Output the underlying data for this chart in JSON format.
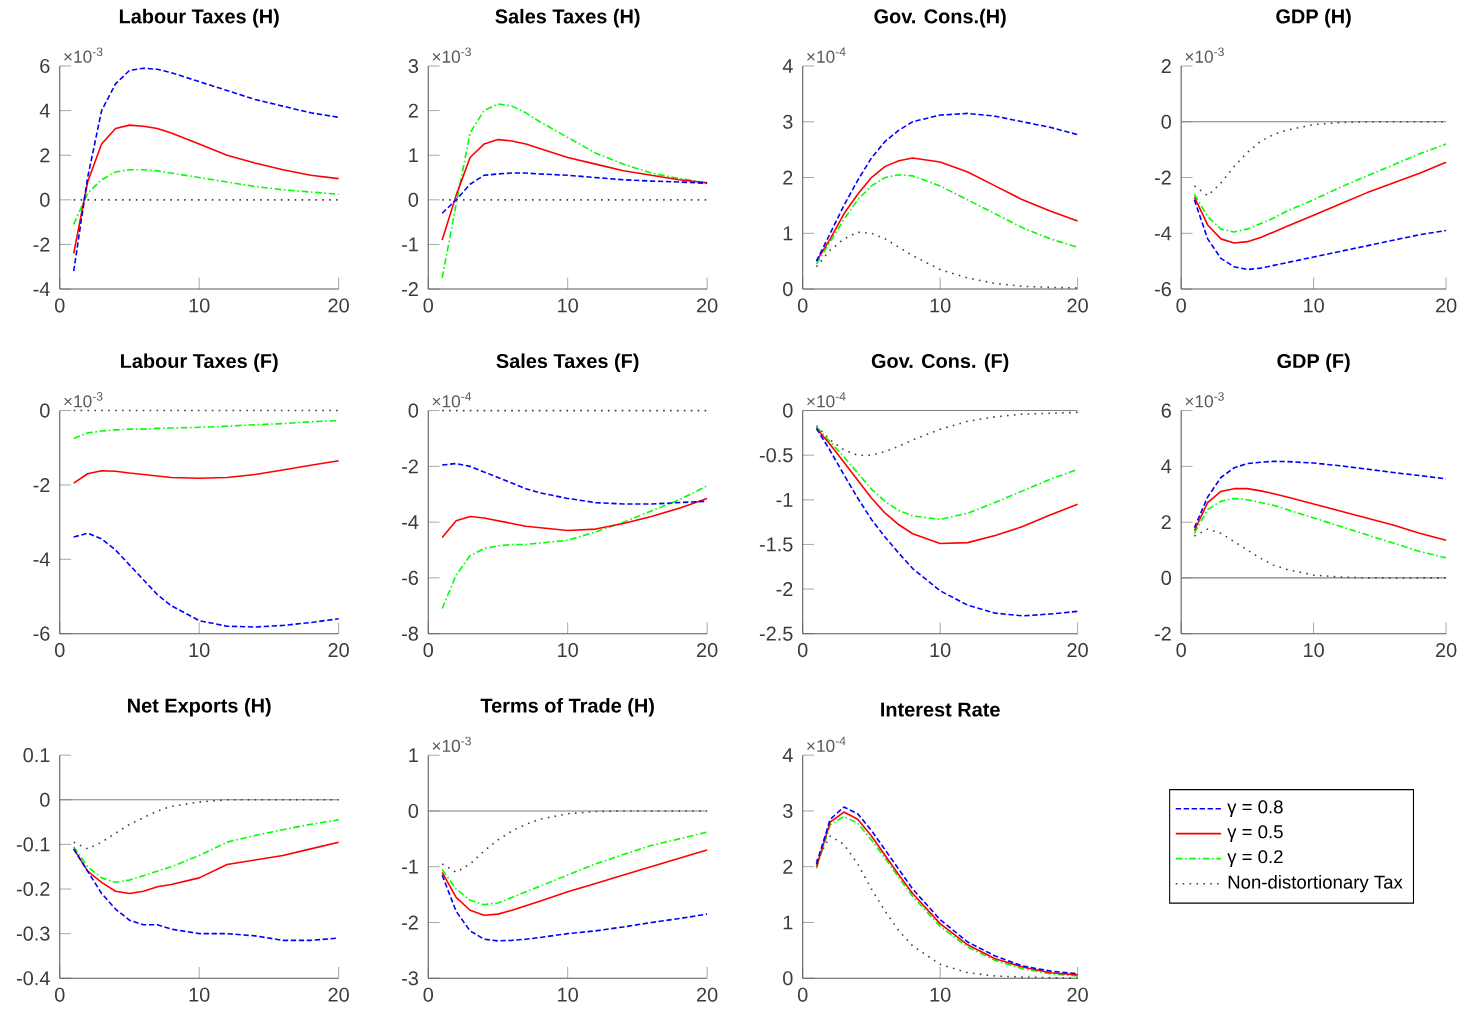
{
  "chart_data": [
    {
      "type": "line",
      "title": "Labour Taxes (H)",
      "annotations": [
        "×10$^{-3}$"
      ],
      "x": [
        1,
        2,
        3,
        4,
        5,
        6,
        7,
        8,
        10,
        12,
        14,
        16,
        18,
        20
      ],
      "xlim": [
        0,
        20
      ],
      "xticks": [
        0,
        10,
        20
      ],
      "ylim": [
        -4,
        6
      ],
      "yticks": [
        -4,
        -2,
        0,
        2,
        4,
        6
      ],
      "series": [
        {
          "color": "#0000ff",
          "line_style": "dashed",
          "values": [
            -3.2,
            1.0,
            4.0,
            5.2,
            5.8,
            5.9,
            5.85,
            5.7,
            5.3,
            4.9,
            4.5,
            4.2,
            3.9,
            3.7
          ]
        },
        {
          "color": "#ff0000",
          "line_style": "solid",
          "values": [
            -2.4,
            0.8,
            2.5,
            3.2,
            3.35,
            3.3,
            3.2,
            3.0,
            2.5,
            2.0,
            1.65,
            1.35,
            1.1,
            0.95
          ]
        },
        {
          "color": "#00ff00",
          "line_style": "dashdot",
          "values": [
            -1.1,
            0.3,
            0.9,
            1.25,
            1.35,
            1.35,
            1.3,
            1.2,
            1.0,
            0.8,
            0.6,
            0.45,
            0.35,
            0.25
          ]
        },
        {
          "color": "#404040",
          "line_style": "dotted",
          "values": [
            0,
            0,
            0,
            0,
            0,
            0,
            0,
            0,
            0,
            0,
            0,
            0,
            0,
            0
          ]
        }
      ]
    },
    {
      "type": "line",
      "title": "Sales Taxes (H)",
      "annotations": [
        "×10$^{-3}$"
      ],
      "x": [
        1,
        2,
        3,
        4,
        5,
        6,
        7,
        8,
        10,
        12,
        14,
        16,
        18,
        20
      ],
      "xlim": [
        0,
        20
      ],
      "xticks": [
        0,
        10,
        20
      ],
      "ylim": [
        -2,
        3
      ],
      "yticks": [
        -2,
        -1,
        0,
        1,
        2,
        3
      ],
      "series": [
        {
          "color": "#0000ff",
          "line_style": "dashed",
          "values": [
            -0.3,
            0.0,
            0.35,
            0.55,
            0.58,
            0.6,
            0.6,
            0.58,
            0.55,
            0.5,
            0.45,
            0.42,
            0.4,
            0.37
          ]
        },
        {
          "color": "#ff0000",
          "line_style": "solid",
          "values": [
            -0.9,
            0.1,
            0.95,
            1.25,
            1.35,
            1.32,
            1.25,
            1.15,
            0.95,
            0.8,
            0.65,
            0.55,
            0.45,
            0.38
          ]
        },
        {
          "color": "#00ff00",
          "line_style": "dashdot",
          "values": [
            -1.75,
            -0.1,
            1.5,
            2.0,
            2.15,
            2.1,
            1.95,
            1.75,
            1.4,
            1.05,
            0.8,
            0.6,
            0.48,
            0.38
          ]
        },
        {
          "color": "#404040",
          "line_style": "dotted",
          "values": [
            0,
            0,
            0,
            0,
            0,
            0,
            0,
            0,
            0,
            0,
            0,
            0,
            0,
            0
          ]
        }
      ]
    },
    {
      "type": "line",
      "title": "Gov. Cons.(H)",
      "annotations": [
        "×10$^{-4}$"
      ],
      "x": [
        1,
        2,
        3,
        4,
        5,
        6,
        7,
        8,
        10,
        12,
        14,
        16,
        18,
        20
      ],
      "xlim": [
        0,
        20
      ],
      "xticks": [
        0,
        10,
        20
      ],
      "ylim": [
        0,
        4
      ],
      "yticks": [
        0,
        1,
        2,
        3,
        4
      ],
      "series": [
        {
          "color": "#0000ff",
          "line_style": "dashed",
          "values": [
            0.5,
            1.0,
            1.5,
            1.95,
            2.35,
            2.65,
            2.85,
            3.0,
            3.12,
            3.15,
            3.1,
            3.0,
            2.9,
            2.77
          ]
        },
        {
          "color": "#ff0000",
          "line_style": "solid",
          "values": [
            0.5,
            0.9,
            1.35,
            1.7,
            2.0,
            2.2,
            2.3,
            2.35,
            2.28,
            2.1,
            1.85,
            1.6,
            1.4,
            1.22
          ]
        },
        {
          "color": "#00ff00",
          "line_style": "dashdot",
          "values": [
            0.45,
            0.85,
            1.25,
            1.6,
            1.85,
            2.0,
            2.05,
            2.03,
            1.85,
            1.6,
            1.35,
            1.1,
            0.9,
            0.75
          ]
        },
        {
          "color": "#404040",
          "line_style": "dotted",
          "values": [
            0.4,
            0.7,
            0.9,
            1.02,
            1.0,
            0.9,
            0.75,
            0.6,
            0.35,
            0.2,
            0.1,
            0.05,
            0.03,
            0.02
          ]
        }
      ]
    },
    {
      "type": "line",
      "title": "GDP (H)",
      "annotations": [
        "×10$^{-3}$"
      ],
      "x": [
        1,
        2,
        3,
        4,
        5,
        6,
        7,
        8,
        10,
        12,
        14,
        16,
        18,
        20
      ],
      "xlim": [
        0,
        20
      ],
      "xticks": [
        0,
        10,
        20
      ],
      "ylim": [
        -6,
        2
      ],
      "yticks": [
        -6,
        -4,
        -2,
        0,
        2
      ],
      "ref_lines": [
        {
          "axis": "y",
          "value": 0,
          "color": "#808080"
        }
      ],
      "series": [
        {
          "color": "#0000ff",
          "line_style": "dashed",
          "values": [
            -2.8,
            -4.2,
            -4.9,
            -5.2,
            -5.3,
            -5.25,
            -5.15,
            -5.05,
            -4.85,
            -4.65,
            -4.45,
            -4.25,
            -4.05,
            -3.9
          ]
        },
        {
          "color": "#ff0000",
          "line_style": "solid",
          "values": [
            -2.7,
            -3.7,
            -4.2,
            -4.35,
            -4.3,
            -4.15,
            -3.95,
            -3.75,
            -3.35,
            -2.95,
            -2.55,
            -2.2,
            -1.85,
            -1.45
          ]
        },
        {
          "color": "#00ff00",
          "line_style": "dashdot",
          "values": [
            -2.6,
            -3.4,
            -3.85,
            -3.95,
            -3.85,
            -3.65,
            -3.45,
            -3.2,
            -2.8,
            -2.35,
            -1.95,
            -1.55,
            -1.15,
            -0.8
          ]
        },
        {
          "color": "#404040",
          "line_style": "dotted",
          "values": [
            -2.3,
            -2.65,
            -2.2,
            -1.6,
            -1.1,
            -0.7,
            -0.45,
            -0.3,
            -0.1,
            -0.03,
            0,
            0,
            0,
            0
          ]
        }
      ]
    },
    {
      "type": "line",
      "title": "Labour Taxes (F)",
      "annotations": [
        "×10$^{-3}$"
      ],
      "x": [
        1,
        2,
        3,
        4,
        5,
        6,
        7,
        8,
        10,
        12,
        14,
        16,
        18,
        20
      ],
      "xlim": [
        0,
        20
      ],
      "xticks": [
        0,
        10,
        20
      ],
      "ylim": [
        -6,
        0
      ],
      "yticks": [
        -6,
        -4,
        -2,
        0
      ],
      "series": [
        {
          "color": "#0000ff",
          "line_style": "dashed",
          "values": [
            -3.4,
            -3.3,
            -3.45,
            -3.75,
            -4.15,
            -4.55,
            -4.95,
            -5.25,
            -5.65,
            -5.8,
            -5.82,
            -5.78,
            -5.7,
            -5.6
          ]
        },
        {
          "color": "#ff0000",
          "line_style": "solid",
          "values": [
            -1.95,
            -1.7,
            -1.62,
            -1.63,
            -1.68,
            -1.72,
            -1.76,
            -1.8,
            -1.82,
            -1.8,
            -1.72,
            -1.6,
            -1.47,
            -1.35
          ]
        },
        {
          "color": "#00ff00",
          "line_style": "dashdot",
          "values": [
            -0.75,
            -0.6,
            -0.55,
            -0.52,
            -0.5,
            -0.5,
            -0.48,
            -0.47,
            -0.45,
            -0.42,
            -0.38,
            -0.35,
            -0.3,
            -0.27
          ]
        },
        {
          "color": "#404040",
          "line_style": "dotted",
          "values": [
            0,
            0,
            0,
            0,
            0,
            0,
            0,
            0,
            0,
            0,
            0,
            0,
            0,
            0
          ]
        }
      ]
    },
    {
      "type": "line",
      "title": "Sales Taxes (F)",
      "annotations": [
        "×10$^{-4}$"
      ],
      "x": [
        1,
        2,
        3,
        4,
        5,
        6,
        7,
        8,
        10,
        12,
        14,
        16,
        18,
        20
      ],
      "xlim": [
        0,
        20
      ],
      "xticks": [
        0,
        10,
        20
      ],
      "ylim": [
        -8,
        0
      ],
      "yticks": [
        -8,
        -6,
        -4,
        -2,
        0
      ],
      "series": [
        {
          "color": "#0000ff",
          "line_style": "dashed",
          "values": [
            -1.95,
            -1.9,
            -2.0,
            -2.2,
            -2.4,
            -2.6,
            -2.8,
            -2.95,
            -3.15,
            -3.3,
            -3.35,
            -3.35,
            -3.3,
            -3.25
          ]
        },
        {
          "color": "#ff0000",
          "line_style": "solid",
          "values": [
            -4.55,
            -3.95,
            -3.8,
            -3.85,
            -3.95,
            -4.05,
            -4.15,
            -4.2,
            -4.3,
            -4.25,
            -4.05,
            -3.8,
            -3.5,
            -3.15
          ]
        },
        {
          "color": "#00ff00",
          "line_style": "dashdot",
          "values": [
            -7.1,
            -5.9,
            -5.2,
            -4.95,
            -4.85,
            -4.8,
            -4.8,
            -4.75,
            -4.65,
            -4.35,
            -4.0,
            -3.6,
            -3.2,
            -2.7
          ]
        },
        {
          "color": "#404040",
          "line_style": "dotted",
          "values": [
            0,
            0,
            0,
            0,
            0,
            0,
            0,
            0,
            0,
            0,
            0,
            0,
            0,
            0
          ]
        }
      ]
    },
    {
      "type": "line",
      "title": "Gov. Cons. (F)",
      "annotations": [
        "×10$^{-4}$"
      ],
      "x": [
        1,
        2,
        3,
        4,
        5,
        6,
        7,
        8,
        10,
        12,
        14,
        16,
        18,
        20
      ],
      "xlim": [
        0,
        20
      ],
      "xticks": [
        0,
        10,
        20
      ],
      "ylim": [
        -2.5,
        0
      ],
      "yticks": [
        -2.5,
        -2,
        -1.5,
        -1,
        -0.5,
        0
      ],
      "ref_lines": [
        {
          "axis": "y",
          "value": 0,
          "color": "#808080"
        }
      ],
      "series": [
        {
          "color": "#0000ff",
          "line_style": "dashed",
          "values": [
            -0.2,
            -0.45,
            -0.72,
            -0.98,
            -1.22,
            -1.42,
            -1.6,
            -1.77,
            -2.02,
            -2.18,
            -2.27,
            -2.3,
            -2.28,
            -2.25
          ]
        },
        {
          "color": "#ff0000",
          "line_style": "solid",
          "values": [
            -0.2,
            -0.38,
            -0.58,
            -0.78,
            -0.98,
            -1.15,
            -1.28,
            -1.38,
            -1.49,
            -1.48,
            -1.4,
            -1.3,
            -1.17,
            -1.05
          ]
        },
        {
          "color": "#00ff00",
          "line_style": "dashdot",
          "values": [
            -0.18,
            -0.35,
            -0.52,
            -0.7,
            -0.88,
            -1.02,
            -1.12,
            -1.18,
            -1.22,
            -1.15,
            -1.03,
            -0.9,
            -0.77,
            -0.66
          ]
        },
        {
          "color": "#404040",
          "line_style": "dotted",
          "values": [
            -0.17,
            -0.33,
            -0.44,
            -0.5,
            -0.5,
            -0.46,
            -0.4,
            -0.33,
            -0.21,
            -0.12,
            -0.07,
            -0.04,
            -0.03,
            -0.02
          ]
        }
      ]
    },
    {
      "type": "line",
      "title": "GDP (F)",
      "annotations": [
        "×10$^{-3}$"
      ],
      "x": [
        1,
        2,
        3,
        4,
        5,
        6,
        7,
        8,
        10,
        12,
        14,
        16,
        18,
        20
      ],
      "xlim": [
        0,
        20
      ],
      "xticks": [
        0,
        10,
        20
      ],
      "ylim": [
        -2,
        6
      ],
      "yticks": [
        -2,
        0,
        2,
        4,
        6
      ],
      "ref_lines": [
        {
          "axis": "y",
          "value": 0,
          "color": "#808080"
        }
      ],
      "series": [
        {
          "color": "#0000ff",
          "line_style": "dashed",
          "values": [
            1.8,
            2.9,
            3.6,
            3.95,
            4.1,
            4.15,
            4.18,
            4.17,
            4.12,
            4.02,
            3.9,
            3.78,
            3.67,
            3.55
          ]
        },
        {
          "color": "#ff0000",
          "line_style": "solid",
          "values": [
            1.7,
            2.7,
            3.1,
            3.2,
            3.2,
            3.12,
            3.02,
            2.9,
            2.65,
            2.4,
            2.15,
            1.9,
            1.6,
            1.35
          ]
        },
        {
          "color": "#00ff00",
          "line_style": "dashdot",
          "values": [
            1.6,
            2.45,
            2.75,
            2.85,
            2.8,
            2.7,
            2.6,
            2.45,
            2.15,
            1.85,
            1.55,
            1.25,
            0.95,
            0.72
          ]
        },
        {
          "color": "#404040",
          "line_style": "dotted",
          "values": [
            1.5,
            1.75,
            1.6,
            1.3,
            1.0,
            0.7,
            0.45,
            0.3,
            0.1,
            0.03,
            0,
            0,
            0,
            0
          ]
        }
      ]
    },
    {
      "type": "line",
      "title": "Net Exports (H)",
      "x": [
        1,
        2,
        3,
        4,
        5,
        6,
        7,
        8,
        10,
        12,
        14,
        16,
        18,
        20
      ],
      "xlim": [
        0,
        20
      ],
      "xticks": [
        0,
        10,
        20
      ],
      "ylim": [
        -0.4,
        0.1
      ],
      "yticks": [
        -0.4,
        -0.3,
        -0.2,
        -0.1,
        0,
        0.1
      ],
      "ref_lines": [
        {
          "axis": "y",
          "value": 0,
          "color": "#808080"
        }
      ],
      "series": [
        {
          "color": "#0000ff",
          "line_style": "dashed",
          "values": [
            -0.11,
            -0.16,
            -0.21,
            -0.245,
            -0.27,
            -0.28,
            -0.28,
            -0.29,
            -0.3,
            -0.3,
            -0.305,
            -0.315,
            -0.315,
            -0.31
          ]
        },
        {
          "color": "#ff0000",
          "line_style": "solid",
          "values": [
            -0.11,
            -0.16,
            -0.185,
            -0.205,
            -0.21,
            -0.205,
            -0.195,
            -0.19,
            -0.175,
            -0.145,
            -0.135,
            -0.125,
            -0.11,
            -0.095
          ]
        },
        {
          "color": "#00ff00",
          "line_style": "dashdot",
          "values": [
            -0.105,
            -0.15,
            -0.175,
            -0.185,
            -0.18,
            -0.17,
            -0.16,
            -0.15,
            -0.125,
            -0.095,
            -0.08,
            -0.067,
            -0.055,
            -0.045
          ]
        },
        {
          "color": "#404040",
          "line_style": "dotted",
          "values": [
            -0.095,
            -0.11,
            -0.095,
            -0.075,
            -0.055,
            -0.04,
            -0.025,
            -0.015,
            -0.005,
            0,
            0,
            0,
            0,
            0
          ]
        }
      ]
    },
    {
      "type": "line",
      "title": "Terms of Trade (H)",
      "annotations": [
        "×10$^{-3}$"
      ],
      "x": [
        1,
        2,
        3,
        4,
        5,
        6,
        7,
        8,
        10,
        12,
        14,
        16,
        18,
        20
      ],
      "xlim": [
        0,
        20
      ],
      "xticks": [
        0,
        10,
        20
      ],
      "ylim": [
        -3,
        1
      ],
      "yticks": [
        -3,
        -2,
        -1,
        0,
        1
      ],
      "ref_lines": [
        {
          "axis": "y",
          "value": 0,
          "color": "#808080"
        }
      ],
      "series": [
        {
          "color": "#0000ff",
          "line_style": "dashed",
          "values": [
            -1.15,
            -1.8,
            -2.15,
            -2.3,
            -2.33,
            -2.32,
            -2.3,
            -2.27,
            -2.2,
            -2.15,
            -2.08,
            -2.0,
            -1.93,
            -1.85
          ]
        },
        {
          "color": "#ff0000",
          "line_style": "solid",
          "values": [
            -1.1,
            -1.55,
            -1.78,
            -1.87,
            -1.85,
            -1.78,
            -1.7,
            -1.62,
            -1.45,
            -1.3,
            -1.15,
            -1.0,
            -0.85,
            -0.7
          ]
        },
        {
          "color": "#00ff00",
          "line_style": "dashdot",
          "values": [
            -1.05,
            -1.4,
            -1.6,
            -1.68,
            -1.65,
            -1.55,
            -1.45,
            -1.35,
            -1.15,
            -0.95,
            -0.78,
            -0.62,
            -0.5,
            -0.38
          ]
        },
        {
          "color": "#404040",
          "line_style": "dotted",
          "values": [
            -0.95,
            -1.1,
            -0.95,
            -0.72,
            -0.52,
            -0.36,
            -0.24,
            -0.15,
            -0.05,
            -0.01,
            0,
            0,
            0,
            0
          ]
        }
      ]
    },
    {
      "type": "line",
      "title": "Interest Rate",
      "annotations": [
        "×10$^{-4}$"
      ],
      "x": [
        1,
        2,
        3,
        4,
        5,
        6,
        7,
        8,
        10,
        12,
        14,
        16,
        18,
        20
      ],
      "xlim": [
        0,
        20
      ],
      "xticks": [
        0,
        10,
        20
      ],
      "ylim": [
        0,
        4
      ],
      "yticks": [
        0,
        1,
        2,
        3,
        4
      ],
      "legend": "right",
      "series": [
        {
          "name": "γ = 0.8",
          "color": "#0000ff",
          "line_style": "dashed",
          "values": [
            2.05,
            2.85,
            3.07,
            2.95,
            2.65,
            2.3,
            1.95,
            1.6,
            1.05,
            0.65,
            0.4,
            0.22,
            0.13,
            0.08
          ]
        },
        {
          "name": "γ = 0.5",
          "color": "#ff0000",
          "line_style": "solid",
          "values": [
            2.0,
            2.8,
            2.98,
            2.85,
            2.55,
            2.2,
            1.85,
            1.52,
            0.98,
            0.6,
            0.35,
            0.2,
            0.1,
            0.06
          ]
        },
        {
          "name": "γ = 0.2",
          "color": "#00ff00",
          "line_style": "dashdot",
          "values": [
            1.97,
            2.75,
            2.9,
            2.78,
            2.48,
            2.15,
            1.8,
            1.47,
            0.93,
            0.56,
            0.32,
            0.17,
            0.08,
            0.04
          ]
        },
        {
          "name": "Non-distortionary Tax",
          "color": "#404040",
          "line_style": "dotted",
          "values": [
            2.1,
            2.55,
            2.4,
            2.05,
            1.6,
            1.2,
            0.85,
            0.58,
            0.25,
            0.1,
            0.04,
            0.02,
            0.01,
            0
          ]
        }
      ]
    }
  ]
}
